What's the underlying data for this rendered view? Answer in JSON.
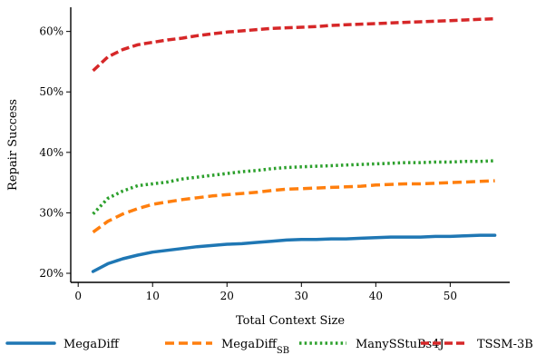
{
  "chart_data": {
    "type": "line",
    "title": "",
    "xlabel": "Total Context Size",
    "ylabel": "Repair Success",
    "xlim": [
      -1,
      58
    ],
    "ylim": [
      18.5,
      64
    ],
    "xticks": [
      0,
      10,
      20,
      30,
      40,
      50
    ],
    "xtick_labels": [
      "0",
      "10",
      "20",
      "30",
      "40",
      "50"
    ],
    "yticks": [
      20,
      30,
      40,
      50,
      60
    ],
    "ytick_labels": [
      "20%",
      "30%",
      "40%",
      "50%",
      "60%"
    ],
    "grid": false,
    "legend_position": "bottom",
    "x": [
      2,
      4,
      6,
      8,
      10,
      12,
      14,
      16,
      18,
      20,
      22,
      24,
      26,
      28,
      30,
      32,
      34,
      36,
      38,
      40,
      42,
      44,
      46,
      48,
      50,
      52,
      54,
      56
    ],
    "series": [
      {
        "name": "MegaDiff",
        "legend_main": "MegaDiff",
        "legend_sub": "",
        "color": "#1f77b4",
        "style": "solid",
        "values": [
          20.3,
          21.6,
          22.4,
          23.0,
          23.5,
          23.8,
          24.1,
          24.4,
          24.6,
          24.8,
          24.9,
          25.1,
          25.3,
          25.5,
          25.6,
          25.6,
          25.7,
          25.7,
          25.8,
          25.9,
          26.0,
          26.0,
          26.0,
          26.1,
          26.1,
          26.2,
          26.3,
          26.3
        ]
      },
      {
        "name": "MegaDiffSB",
        "legend_main": "MegaDiff",
        "legend_sub": "SB",
        "color": "#ff7f0e",
        "style": "dashed",
        "values": [
          26.8,
          28.6,
          29.8,
          30.7,
          31.4,
          31.8,
          32.2,
          32.5,
          32.8,
          33.0,
          33.2,
          33.4,
          33.7,
          33.9,
          34.0,
          34.1,
          34.2,
          34.3,
          34.4,
          34.6,
          34.7,
          34.8,
          34.8,
          34.9,
          35.0,
          35.1,
          35.2,
          35.3
        ]
      },
      {
        "name": "ManySStuBs4J",
        "legend_main": "ManySStuBs4J",
        "legend_sub": "",
        "color": "#2ca02c",
        "style": "dotted",
        "values": [
          29.8,
          32.4,
          33.6,
          34.5,
          34.8,
          35.1,
          35.6,
          35.9,
          36.2,
          36.5,
          36.8,
          37.0,
          37.3,
          37.5,
          37.6,
          37.7,
          37.8,
          37.9,
          38.0,
          38.1,
          38.2,
          38.3,
          38.3,
          38.4,
          38.4,
          38.5,
          38.5,
          38.6
        ]
      },
      {
        "name": "TSSM-3B",
        "legend_main": "TSSM-3B",
        "legend_sub": "",
        "color": "#d62728",
        "style": "dashed",
        "values": [
          53.5,
          55.8,
          57.0,
          57.8,
          58.2,
          58.6,
          58.9,
          59.3,
          59.6,
          59.9,
          60.1,
          60.3,
          60.5,
          60.6,
          60.7,
          60.8,
          61.0,
          61.1,
          61.2,
          61.3,
          61.4,
          61.5,
          61.6,
          61.7,
          61.8,
          61.9,
          62.0,
          62.1
        ]
      }
    ]
  }
}
